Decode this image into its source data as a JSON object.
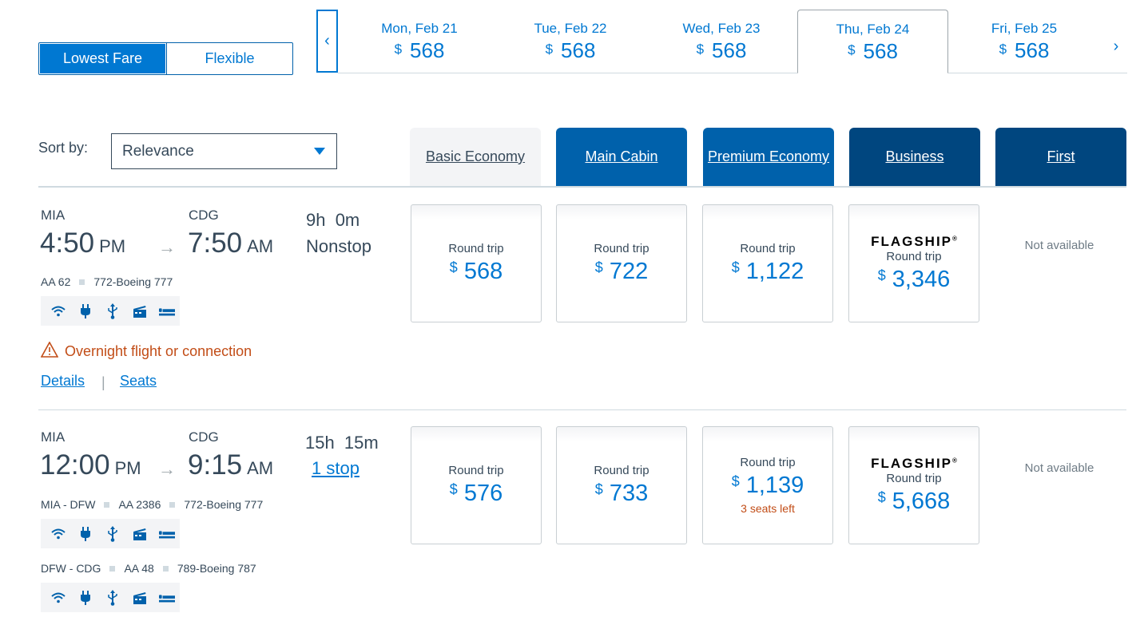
{
  "fare_toggle": {
    "lowest": "Lowest Fare",
    "flexible": "Flexible"
  },
  "currency": "$",
  "dates": [
    {
      "label": "Mon, Feb 21",
      "price": "568",
      "selected": false
    },
    {
      "label": "Tue, Feb 22",
      "price": "568",
      "selected": false
    },
    {
      "label": "Wed, Feb 23",
      "price": "568",
      "selected": false
    },
    {
      "label": "Thu, Feb 24",
      "price": "568",
      "selected": true
    },
    {
      "label": "Fri, Feb 25",
      "price": "568",
      "selected": false
    }
  ],
  "sort": {
    "label": "Sort by:",
    "value": "Relevance"
  },
  "cabins": [
    "Basic Economy",
    "Main Cabin",
    "Premium Economy",
    "Business",
    "First"
  ],
  "flights": [
    {
      "origin": "MIA",
      "dest": "CDG",
      "dep_time": "4:50",
      "dep_ampm": "PM",
      "arr_time": "7:50",
      "arr_ampm": "AM",
      "duration": "9h  0m",
      "stops": "Nonstop",
      "segments": [
        {
          "route": "",
          "flight": "AA 62",
          "aircraft": "772-Boeing 777"
        }
      ],
      "warning": "Overnight flight or connection",
      "details": "Details",
      "seats": "Seats",
      "fares": [
        {
          "label": "Round trip",
          "price": "568"
        },
        {
          "label": "Round trip",
          "price": "722"
        },
        {
          "label": "Round trip",
          "price": "1,122"
        },
        {
          "brand": "FLAGSHIP",
          "label": "Round trip",
          "price": "3,346"
        }
      ],
      "first": "Not available"
    },
    {
      "origin": "MIA",
      "dest": "CDG",
      "dep_time": "12:00",
      "dep_ampm": "PM",
      "arr_time": "9:15",
      "arr_ampm": "AM",
      "duration": "15h  15m",
      "stops": "1 stop",
      "segments": [
        {
          "route": "MIA - DFW",
          "flight": "AA 2386",
          "aircraft": "772-Boeing 777"
        },
        {
          "route": "DFW - CDG",
          "flight": "AA 48",
          "aircraft": "789-Boeing 787"
        }
      ],
      "fares": [
        {
          "label": "Round trip",
          "price": "576"
        },
        {
          "label": "Round trip",
          "price": "733"
        },
        {
          "label": "Round trip",
          "price": "1,139",
          "note": "3 seats left"
        },
        {
          "brand": "FLAGSHIP",
          "label": "Round trip",
          "price": "5,668"
        }
      ],
      "first": "Not available"
    }
  ],
  "icons": [
    "wifi-icon",
    "power-icon",
    "usb-icon",
    "entertainment-icon",
    "lie-flat-seat-icon"
  ],
  "colors": {
    "accent": "#0078d2",
    "dark_blue": "#00467f",
    "mid_blue": "#0061ab",
    "warning": "#c24d17"
  }
}
